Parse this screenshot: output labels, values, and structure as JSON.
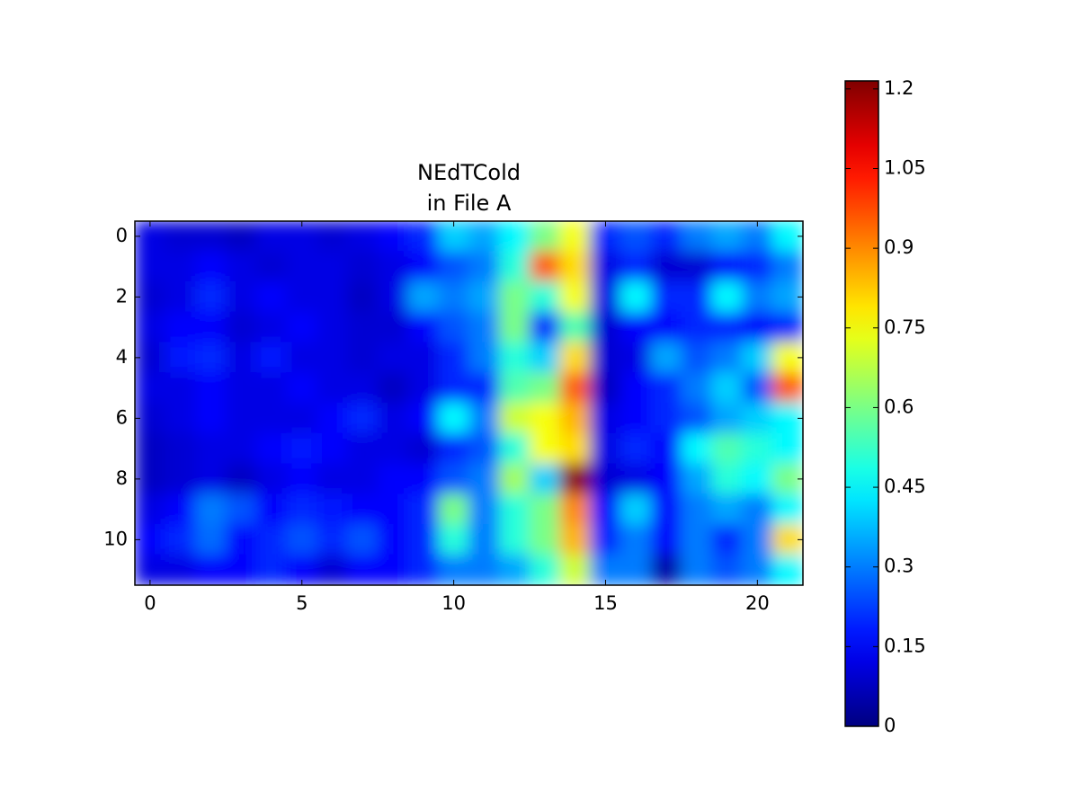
{
  "chart_data": {
    "type": "heatmap",
    "title": "NEdTCold\nin File A",
    "colormap": "jet",
    "xlim": [
      -0.5,
      21.5
    ],
    "ylim": [
      11.5,
      -0.5
    ],
    "xticks": [
      0,
      5,
      10,
      15,
      20
    ],
    "yticks": [
      0,
      2,
      4,
      6,
      8,
      10
    ],
    "zlim": [
      0,
      1.215
    ],
    "zticks": [
      0,
      0.15,
      0.3,
      0.45,
      0.6,
      0.75,
      0.9,
      1.05,
      1.2
    ],
    "z": [
      [
        0.12,
        0.1,
        0.1,
        0.08,
        0.12,
        0.12,
        0.1,
        0.12,
        0.15,
        0.2,
        0.4,
        0.35,
        0.45,
        0.6,
        0.75,
        0.2,
        0.25,
        0.2,
        0.3,
        0.35,
        0.3,
        0.45
      ],
      [
        0.12,
        0.12,
        0.15,
        0.12,
        0.1,
        0.12,
        0.12,
        0.1,
        0.12,
        0.15,
        0.25,
        0.3,
        0.5,
        0.95,
        0.8,
        0.12,
        0.2,
        0.1,
        0.1,
        0.15,
        0.2,
        0.3
      ],
      [
        0.1,
        0.12,
        0.2,
        0.12,
        0.15,
        0.12,
        0.12,
        0.08,
        0.12,
        0.35,
        0.3,
        0.35,
        0.6,
        0.5,
        0.75,
        0.12,
        0.45,
        0.2,
        0.2,
        0.45,
        0.3,
        0.35
      ],
      [
        0.12,
        0.15,
        0.15,
        0.1,
        0.12,
        0.15,
        0.12,
        0.1,
        0.1,
        0.15,
        0.25,
        0.3,
        0.6,
        0.2,
        0.55,
        0.1,
        0.15,
        0.15,
        0.2,
        0.2,
        0.15,
        0.2
      ],
      [
        0.1,
        0.18,
        0.2,
        0.12,
        0.18,
        0.12,
        0.12,
        0.1,
        0.12,
        0.12,
        0.2,
        0.3,
        0.5,
        0.4,
        0.8,
        0.1,
        0.12,
        0.35,
        0.25,
        0.3,
        0.4,
        0.75
      ],
      [
        0.12,
        0.12,
        0.15,
        0.12,
        0.12,
        0.15,
        0.12,
        0.12,
        0.08,
        0.12,
        0.2,
        0.2,
        0.55,
        0.6,
        0.95,
        0.08,
        0.15,
        0.2,
        0.3,
        0.4,
        0.25,
        0.95
      ],
      [
        0.1,
        0.12,
        0.15,
        0.12,
        0.12,
        0.12,
        0.15,
        0.2,
        0.12,
        0.15,
        0.45,
        0.3,
        0.7,
        0.75,
        0.85,
        0.12,
        0.15,
        0.2,
        0.25,
        0.35,
        0.4,
        0.45
      ],
      [
        0.08,
        0.1,
        0.12,
        0.12,
        0.15,
        0.18,
        0.15,
        0.12,
        0.12,
        0.1,
        0.2,
        0.25,
        0.5,
        0.75,
        0.8,
        0.12,
        0.2,
        0.15,
        0.45,
        0.55,
        0.5,
        0.45
      ],
      [
        0.08,
        0.1,
        0.12,
        0.08,
        0.12,
        0.15,
        0.12,
        0.12,
        0.15,
        0.15,
        0.25,
        0.3,
        0.65,
        0.4,
        1.2,
        0.1,
        0.12,
        0.15,
        0.35,
        0.5,
        0.45,
        0.6
      ],
      [
        0.12,
        0.15,
        0.3,
        0.25,
        0.15,
        0.2,
        0.18,
        0.15,
        0.15,
        0.2,
        0.6,
        0.3,
        0.5,
        0.6,
        0.9,
        0.15,
        0.4,
        0.15,
        0.3,
        0.35,
        0.3,
        0.45
      ],
      [
        0.15,
        0.2,
        0.28,
        0.15,
        0.2,
        0.25,
        0.2,
        0.25,
        0.15,
        0.2,
        0.5,
        0.3,
        0.5,
        0.6,
        0.85,
        0.2,
        0.3,
        0.15,
        0.3,
        0.2,
        0.3,
        0.8
      ],
      [
        0.12,
        0.12,
        0.15,
        0.15,
        0.2,
        0.15,
        0.1,
        0.15,
        0.15,
        0.2,
        0.3,
        0.3,
        0.35,
        0.5,
        0.7,
        0.3,
        0.3,
        0.05,
        0.3,
        0.25,
        0.3,
        0.45
      ]
    ]
  }
}
